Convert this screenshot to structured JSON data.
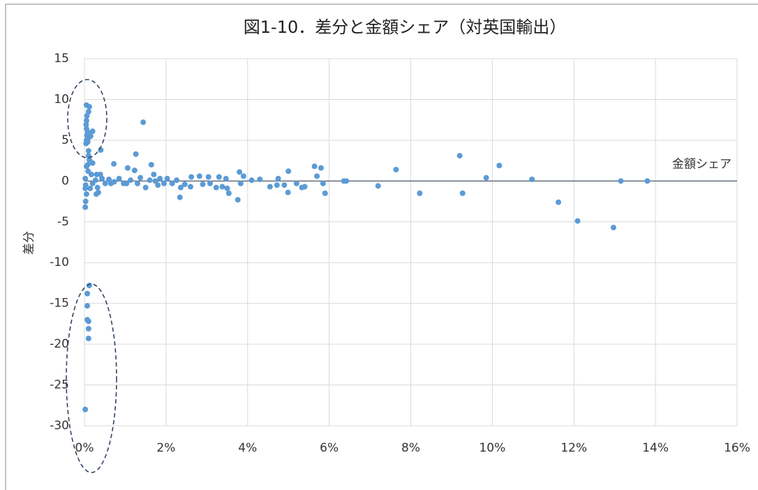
{
  "chart_data": {
    "type": "scatter",
    "title": "図1-10．差分と金額シェア（対英国輸出）",
    "y_label": "差分",
    "annotation": "金額シェア",
    "color": "#5b9bd5",
    "grid": true,
    "xlim": [
      0,
      16
    ],
    "ylim": [
      -30,
      15
    ],
    "xticks": [
      {
        "value": 0,
        "label": "0%"
      },
      {
        "value": 2,
        "label": "2%"
      },
      {
        "value": 4,
        "label": "4%"
      },
      {
        "value": 6,
        "label": "6%"
      },
      {
        "value": 8,
        "label": "8%"
      },
      {
        "value": 10,
        "label": "10%"
      },
      {
        "value": 12,
        "label": "12%"
      },
      {
        "value": 14,
        "label": "14%"
      },
      {
        "value": 16,
        "label": "16%"
      }
    ],
    "yticks": [
      -30,
      -25,
      -20,
      -15,
      -10,
      -5,
      0,
      5,
      10,
      15
    ],
    "x": [
      5.64,
      5.8,
      5.7,
      7.64,
      9.2,
      10.17,
      9.85,
      10.97,
      13.15,
      13.8,
      8.22,
      9.27,
      11.62,
      12.09,
      12.97,
      7.2,
      5.9,
      5.85,
      6.36,
      6.42,
      4.99,
      5.0,
      5.33,
      5.2,
      5.4,
      4.9,
      4.75,
      4.55,
      4.72,
      3.83,
      3.8,
      3.9,
      4.1,
      4.3,
      3.76,
      3.54,
      3.5,
      3.47,
      3.38,
      3.23,
      3.3,
      3.04,
      3.08,
      2.9,
      2.82,
      2.62,
      2.6,
      2.46,
      2.34,
      2.36,
      2.26,
      2.15,
      2.03,
      1.95,
      1.85,
      1.8,
      1.7,
      1.6,
      1.5,
      1.37,
      1.23,
      1.13,
      0.96,
      0.85,
      0.73,
      0.6,
      0.51,
      0.43,
      0.34,
      0.32,
      0.27,
      0.2,
      0.17,
      0.14,
      0.09,
      0.05,
      0.03,
      0.02,
      0.02,
      0.05,
      0.29,
      0.3,
      0.39,
      0.65,
      1.03,
      1.3,
      1.74,
      1.44,
      1.26,
      1.64,
      0.72,
      1.06,
      0.05,
      0.12,
      0.1,
      0.06,
      0.05,
      0.04,
      0.05,
      0.08,
      0.06,
      0.1,
      0.05,
      0.08,
      0.04,
      0.2,
      0.4,
      0.1,
      0.1,
      0.15,
      0.12,
      0.2,
      0.08,
      0.12,
      0.07,
      0.07,
      0.07,
      0.1,
      0.1,
      0.1,
      0.02,
      0.02,
      0.03
    ],
    "y": [
      1.8,
      1.6,
      0.6,
      1.4,
      3.1,
      1.9,
      0.4,
      0.2,
      0,
      0,
      -1.5,
      -1.5,
      -2.6,
      -4.9,
      -5.7,
      -0.6,
      -1.5,
      -0.3,
      0,
      0,
      -1.4,
      1.2,
      -0.8,
      -0.3,
      -0.7,
      -0.5,
      0.3,
      -0.7,
      -0.5,
      -0.3,
      1.1,
      0.6,
      0.1,
      0.2,
      -2.3,
      -1.5,
      -0.9,
      0.3,
      -0.7,
      -0.8,
      0.5,
      0.5,
      -0.3,
      -0.4,
      0.6,
      0.5,
      -0.7,
      -0.4,
      -2.0,
      -0.8,
      0.1,
      -0.3,
      0.3,
      -0.3,
      0.3,
      -0.5,
      0.8,
      0.1,
      -0.8,
      0.4,
      1.3,
      0.1,
      -0.3,
      0.3,
      -0.1,
      0.2,
      -0.3,
      0.3,
      -1.4,
      -0.8,
      0.1,
      -0.3,
      0.8,
      -0.9,
      1.2,
      1.8,
      -0.5,
      0.3,
      -0.9,
      -1.6,
      -1.6,
      0.8,
      0.8,
      -0.3,
      -0.3,
      -0.3,
      0.0,
      7.2,
      3.3,
      2.0,
      2.1,
      1.6,
      9.3,
      9.1,
      8.5,
      8.0,
      7.4,
      6.9,
      6.4,
      6.0,
      5.6,
      5.3,
      5.0,
      4.8,
      4.6,
      6.1,
      3.8,
      3.7,
      3.1,
      5.5,
      2.6,
      2.2,
      2.0,
      -12.8,
      -13.8,
      -15.3,
      -17.0,
      -17.2,
      -18.1,
      -19.3,
      -28.0,
      -3.2,
      -2.5
    ]
  }
}
